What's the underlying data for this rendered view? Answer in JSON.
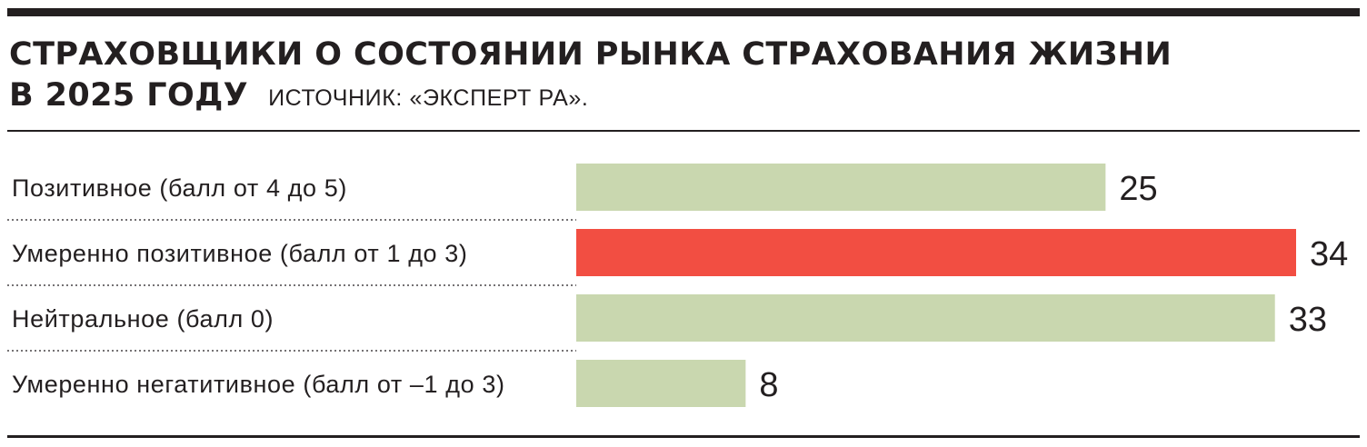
{
  "header": {
    "title_line1": "СТРАХОВЩИКИ О СОСТОЯНИИ РЫНКА СТРАХОВАНИЯ ЖИЗНИ",
    "title_line2": "В 2025 ГОДУ",
    "source": "ИСТОЧНИК: «ЭКСПЕРТ РА»."
  },
  "colors": {
    "default_bar": "#c9d7af",
    "highlight_bar": "#f24e42",
    "text": "#231f20",
    "divider": "#231f20"
  },
  "chart_data": {
    "type": "bar",
    "orientation": "horizontal",
    "title": "СТРАХОВЩИКИ О СОСТОЯНИИ РЫНКА СТРАХОВАНИЯ ЖИЗНИ В 2025 ГОДУ",
    "categories": [
      "Позитивное (балл от 4 до 5)",
      "Умеренно позитивное (балл от 1 до 3)",
      "Нейтральное (балл 0)",
      "Умеренно негатитивное (балл от –1 до 3)"
    ],
    "values": [
      25,
      34,
      33,
      8
    ],
    "highlighted": [
      false,
      true,
      false,
      false
    ],
    "xlim": [
      0,
      34
    ],
    "grid": false,
    "legend": "none"
  }
}
